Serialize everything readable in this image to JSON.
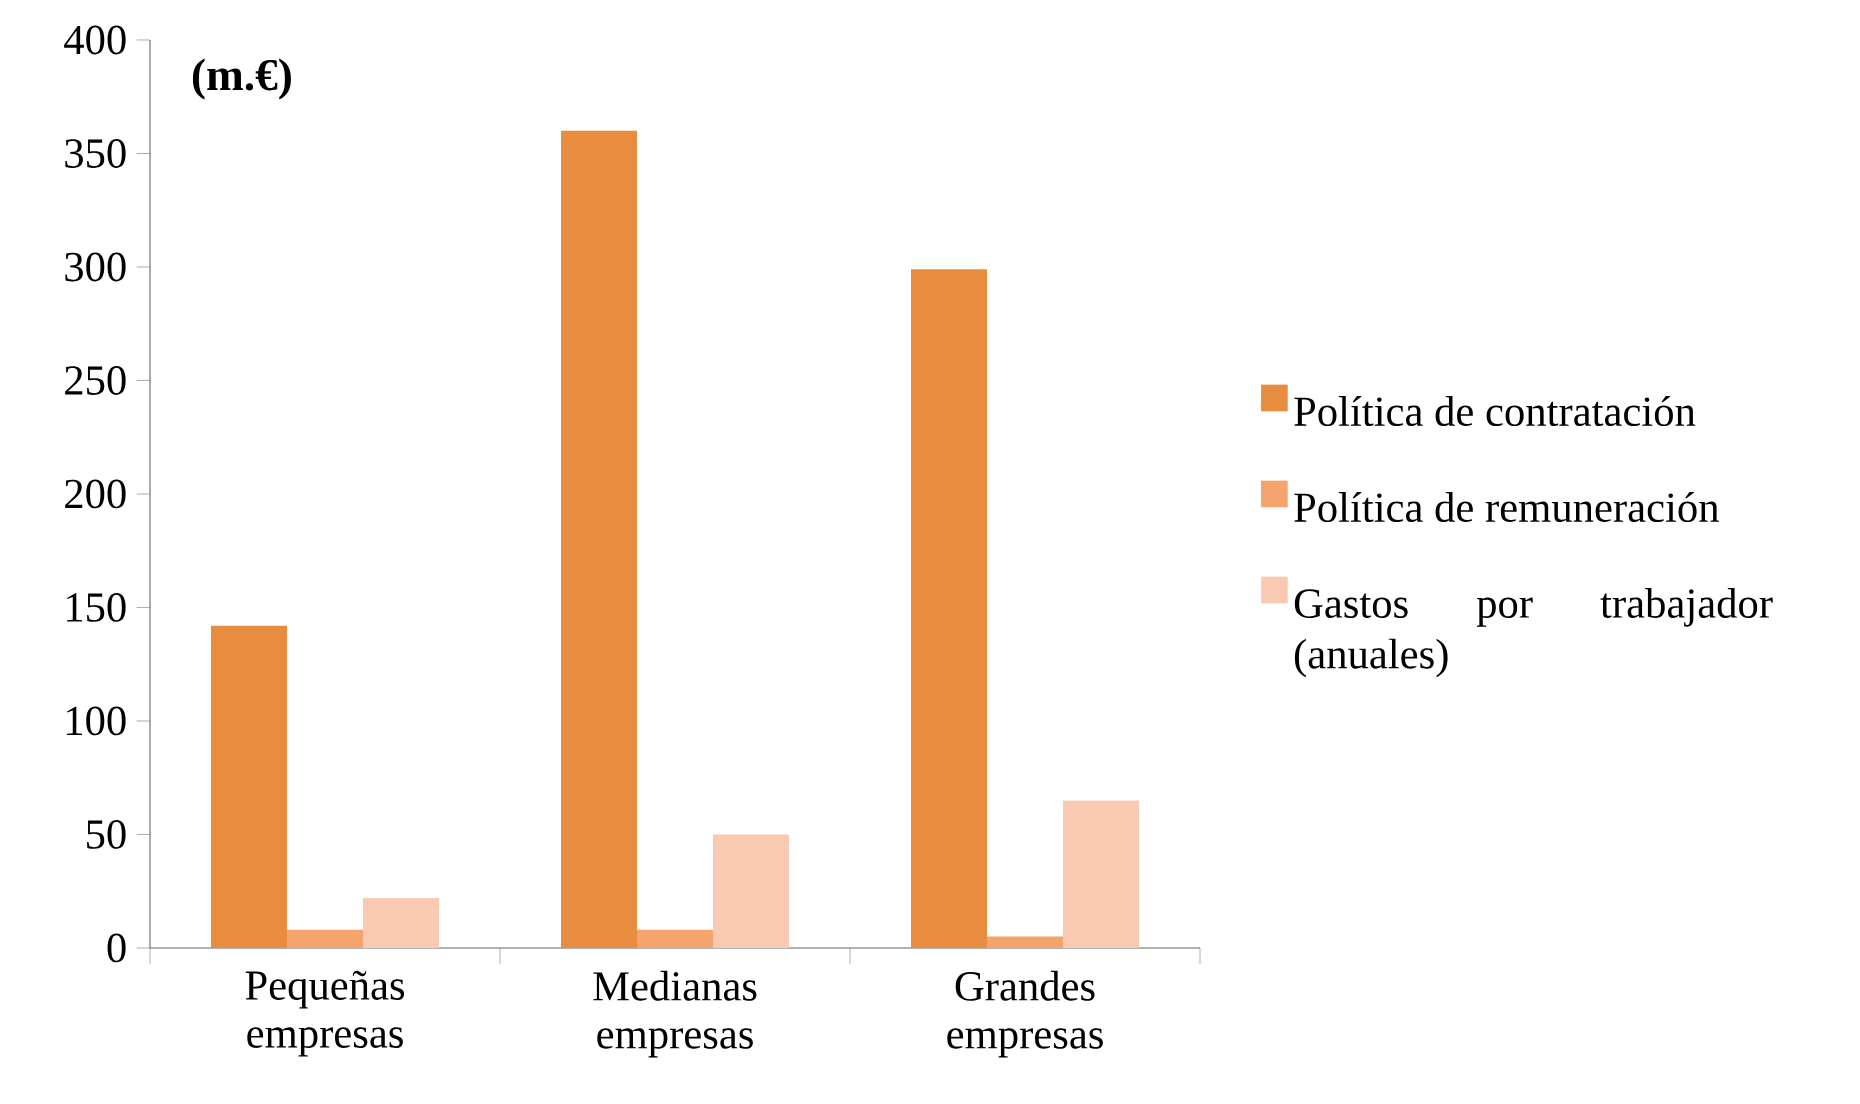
{
  "chart_data": {
    "type": "bar",
    "ylabel": "(m.€)",
    "categories": [
      "Pequeñas empresas",
      "Medianas empresas",
      "Grandes empresas"
    ],
    "series": [
      {
        "name": "Política de contratación",
        "color": "#e88d3f",
        "values": [
          142,
          360,
          299
        ]
      },
      {
        "name": "Política de remuneración",
        "color": "#f4a46c",
        "values": [
          8,
          8,
          5
        ]
      },
      {
        "name": "Gastos por trabajador (anuales)",
        "color": "#f9c9b1",
        "values": [
          22,
          50,
          65
        ]
      }
    ],
    "ylim": [
      0,
      400
    ],
    "yticks": [
      0,
      50,
      100,
      150,
      200,
      250,
      300,
      350,
      400
    ],
    "grid": false,
    "legend": "right"
  }
}
